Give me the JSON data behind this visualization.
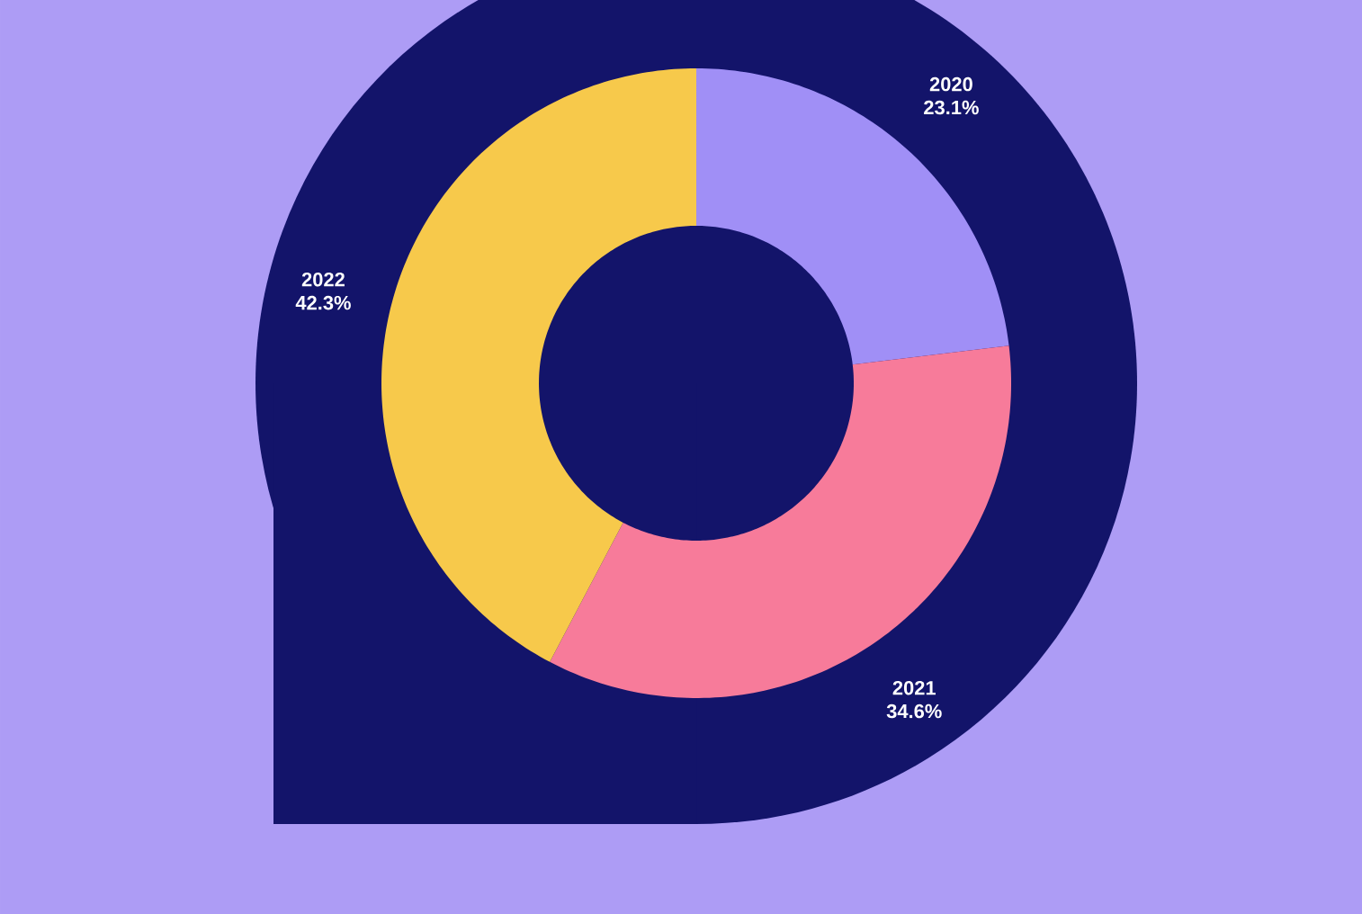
{
  "chart_data": {
    "type": "donut",
    "categories": [
      "2020",
      "2021",
      "2022"
    ],
    "values": [
      23.1,
      34.6,
      42.3
    ],
    "value_labels": [
      "23.1%",
      "34.6%",
      "42.3%"
    ],
    "colors": [
      "#a08ff6",
      "#f77b9a",
      "#f7c94b"
    ]
  }
}
